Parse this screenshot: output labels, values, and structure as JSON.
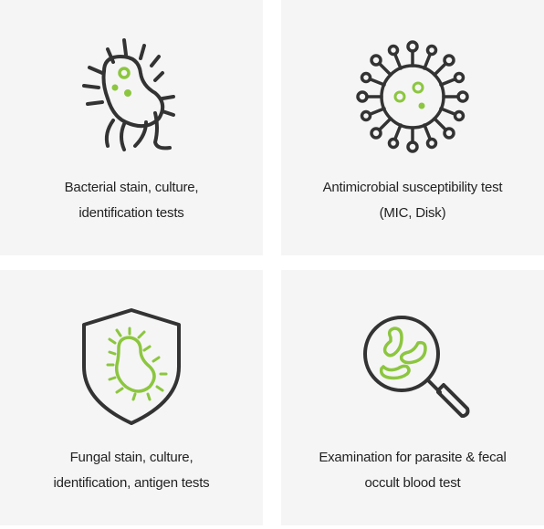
{
  "colors": {
    "card_background": "#f5f5f5",
    "icon_stroke": "#333333",
    "accent": "#8cc63f",
    "text": "#222222"
  },
  "cards": [
    {
      "icon": "bacterium-icon",
      "line1": "Bacterial stain, culture,",
      "line2": "identification tests"
    },
    {
      "icon": "virus-icon",
      "line1": "Antimicrobial susceptibility test",
      "line2": "(MIC, Disk)"
    },
    {
      "icon": "shield-fungus-icon",
      "line1": "Fungal stain, culture,",
      "line2": "identification, antigen tests"
    },
    {
      "icon": "magnifier-parasite-icon",
      "line1": "Examination for parasite & fecal",
      "line2": "occult blood test"
    }
  ]
}
